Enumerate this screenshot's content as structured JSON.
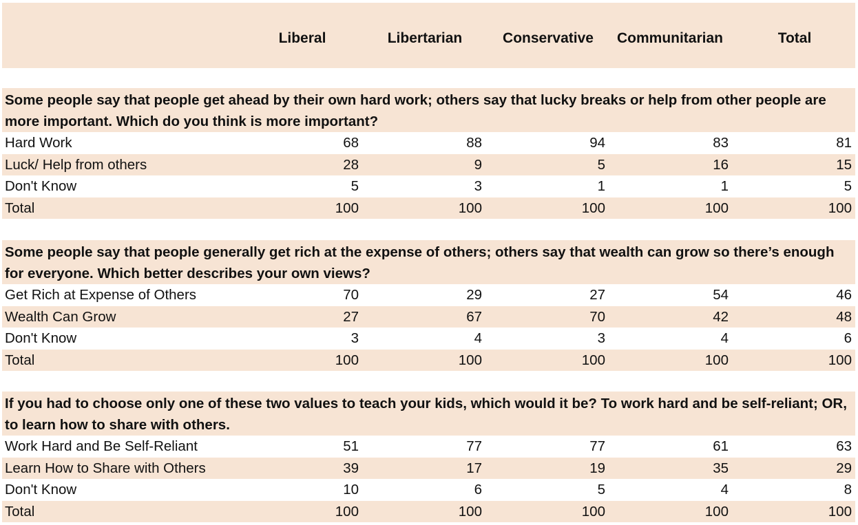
{
  "columns": [
    "Liberal",
    "Libertarian",
    "Conservative",
    "Communitarian",
    "Total"
  ],
  "sections": [
    {
      "question": "Some people say that people get ahead by their own hard work; others say that lucky breaks or help from other people are more important. Which do you think is more important?",
      "rows": [
        {
          "label": "Hard Work",
          "values": [
            "68",
            "88",
            "94",
            "83",
            "81"
          ]
        },
        {
          "label": "Luck/ Help from others",
          "values": [
            "28",
            "9",
            "5",
            "16",
            "15"
          ]
        },
        {
          "label": "Don't Know",
          "values": [
            "5",
            "3",
            "1",
            "1",
            "5"
          ]
        },
        {
          "label": "Total",
          "values": [
            "100",
            "100",
            "100",
            "100",
            "100"
          ]
        }
      ]
    },
    {
      "question": "Some people say that people generally get rich at the expense of others; others say that wealth can grow so there’s enough for everyone. Which better describes your own views?",
      "rows": [
        {
          "label": "Get Rich at Expense of Others",
          "values": [
            "70",
            "29",
            "27",
            "54",
            "46"
          ]
        },
        {
          "label": "Wealth Can Grow",
          "values": [
            "27",
            "67",
            "70",
            "42",
            "48"
          ]
        },
        {
          "label": "Don't Know",
          "values": [
            "3",
            "4",
            "3",
            "4",
            "6"
          ]
        },
        {
          "label": "Total",
          "values": [
            "100",
            "100",
            "100",
            "100",
            "100"
          ]
        }
      ]
    },
    {
      "question": "If you had to choose only one of these two values to teach your kids, which would it be? To work hard and be self-reliant; OR, to learn how to share with others.",
      "rows": [
        {
          "label": "Work Hard and Be Self-Reliant",
          "values": [
            "51",
            "77",
            "77",
            "61",
            "63"
          ]
        },
        {
          "label": "Learn How to Share with Others",
          "values": [
            "39",
            "17",
            "19",
            "35",
            "29"
          ]
        },
        {
          "label": "Don't Know",
          "values": [
            "10",
            "6",
            "5",
            "4",
            "8"
          ]
        },
        {
          "label": "Total",
          "values": [
            "100",
            "100",
            "100",
            "100",
            "100"
          ]
        }
      ]
    }
  ],
  "colors": {
    "band": "#f7e4d4",
    "text": "#111111"
  }
}
